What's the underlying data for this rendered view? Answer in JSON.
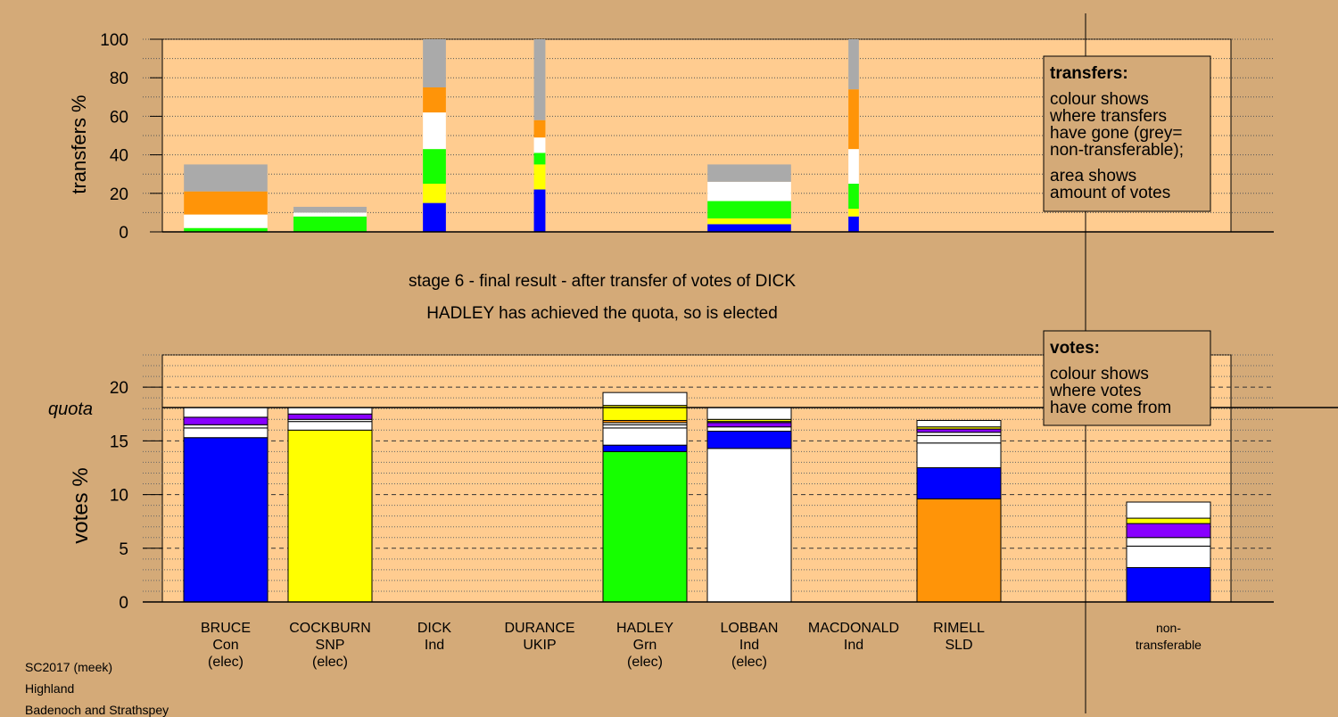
{
  "colors": {
    "background": "#d4aa78",
    "plot_background": "#ffcc90",
    "Con": "#0000ff",
    "SNP": "#ffff00",
    "Grn": "#16ff00",
    "Ind": "#ffffff",
    "SLD": "#ff9408",
    "Other": "#8800ff",
    "nontransferable": "#aaaaaa"
  },
  "heading": {
    "stage": "stage 6 - final result - after transfer of votes of DICK",
    "status": "HADLEY has achieved the quota, so is elected"
  },
  "legends": {
    "transfers": {
      "title": "transfers:",
      "lines": [
        "colour shows",
        "where transfers",
        "have gone (grey=",
        "non-transferable);",
        "area shows",
        "amount of votes"
      ]
    },
    "votes": {
      "title": "votes:",
      "lines": [
        "colour shows",
        "where votes",
        "have come from"
      ]
    }
  },
  "footer": {
    "line1": "SC2017 (meek)",
    "line2": "Highland",
    "line3": "Badenoch and Strathspey"
  },
  "chart_data": [
    {
      "type": "bar",
      "stacked": true,
      "title": "",
      "ylabel": "transfers %",
      "ylim": [
        0,
        100
      ],
      "yticks": [
        0,
        20,
        40,
        60,
        80,
        100
      ],
      "grid": true,
      "legend": "right",
      "bars": [
        {
          "slot": 0,
          "width": 0.8,
          "segments": [
            {
              "color": "Grn",
              "value": 2
            },
            {
              "color": "Ind",
              "value": 7
            },
            {
              "color": "SLD",
              "value": 12
            },
            {
              "color": "nontransferable",
              "value": 14
            }
          ]
        },
        {
          "slot": 1,
          "width": 0.7,
          "segments": [
            {
              "color": "Grn",
              "value": 8
            },
            {
              "color": "Ind",
              "value": 2
            },
            {
              "color": "nontransferable",
              "value": 3
            }
          ]
        },
        {
          "slot": 2,
          "width": 0.22,
          "segments": [
            {
              "color": "Con",
              "value": 15
            },
            {
              "color": "SNP",
              "value": 10
            },
            {
              "color": "Grn",
              "value": 18
            },
            {
              "color": "Ind",
              "value": 19
            },
            {
              "color": "SLD",
              "value": 13
            },
            {
              "color": "nontransferable",
              "value": 25
            }
          ]
        },
        {
          "slot": 3,
          "width": 0.11,
          "segments": [
            {
              "color": "Con",
              "value": 22
            },
            {
              "color": "SNP",
              "value": 13
            },
            {
              "color": "Grn",
              "value": 6
            },
            {
              "color": "Ind",
              "value": 8
            },
            {
              "color": "SLD",
              "value": 9
            },
            {
              "color": "nontransferable",
              "value": 42
            }
          ]
        },
        {
          "slot": 5,
          "width": 0.8,
          "segments": [
            {
              "color": "Con",
              "value": 4
            },
            {
              "color": "SNP",
              "value": 3
            },
            {
              "color": "Grn",
              "value": 9
            },
            {
              "color": "Ind",
              "value": 10
            },
            {
              "color": "nontransferable",
              "value": 9
            }
          ]
        },
        {
          "slot": 6,
          "width": 0.1,
          "segments": [
            {
              "color": "Con",
              "value": 8
            },
            {
              "color": "SNP",
              "value": 4
            },
            {
              "color": "Grn",
              "value": 13
            },
            {
              "color": "Ind",
              "value": 18
            },
            {
              "color": "SLD",
              "value": 31
            },
            {
              "color": "nontransferable",
              "value": 26
            }
          ]
        }
      ]
    },
    {
      "type": "bar",
      "stacked": true,
      "title": "",
      "ylabel": "votes %",
      "ylim": [
        0,
        23
      ],
      "yticks": [
        0,
        5,
        10,
        15,
        20
      ],
      "quota": 18.1,
      "quota_label": "quota",
      "grid": true,
      "legend": "right",
      "candidates": [
        {
          "name": "BRUCE",
          "party": "Con",
          "note": "(elec)"
        },
        {
          "name": "COCKBURN",
          "party": "SNP",
          "note": "(elec)"
        },
        {
          "name": "DICK",
          "party": "Ind",
          "note": ""
        },
        {
          "name": "DURANCE",
          "party": "UKIP",
          "note": ""
        },
        {
          "name": "HADLEY",
          "party": "Grn",
          "note": "(elec)"
        },
        {
          "name": "LOBBAN",
          "party": "Ind",
          "note": "(elec)"
        },
        {
          "name": "MACDONALD",
          "party": "Ind",
          "note": ""
        },
        {
          "name": "RIMELL",
          "party": "SLD",
          "note": ""
        },
        {
          "name": "non-",
          "party": "transferable",
          "note": ""
        }
      ],
      "bars": [
        {
          "slot": 0,
          "segments": [
            {
              "color": "Con",
              "value": 15.3
            },
            {
              "color": "Ind",
              "value": 0.9
            },
            {
              "color": "Ind",
              "value": 0.3
            },
            {
              "color": "Other",
              "value": 0.7
            },
            {
              "color": "Ind",
              "value": 0.9
            }
          ]
        },
        {
          "slot": 1,
          "segments": [
            {
              "color": "SNP",
              "value": 16.0
            },
            {
              "color": "Ind",
              "value": 0.8
            },
            {
              "color": "Ind",
              "value": 0.2
            },
            {
              "color": "Other",
              "value": 0.5
            },
            {
              "color": "Ind",
              "value": 0.6
            }
          ]
        },
        {
          "slot": 4,
          "segments": [
            {
              "color": "Grn",
              "value": 14.0
            },
            {
              "color": "Con",
              "value": 0.6
            },
            {
              "color": "Ind",
              "value": 1.6
            },
            {
              "color": "Ind",
              "value": 0.3
            },
            {
              "color": "Ind",
              "value": 0.2
            },
            {
              "color": "SLD",
              "value": 0.2
            },
            {
              "color": "SNP",
              "value": 1.4
            },
            {
              "color": "Ind",
              "value": 1.2
            }
          ]
        },
        {
          "slot": 5,
          "segments": [
            {
              "color": "Ind",
              "value": 14.3
            },
            {
              "color": "Con",
              "value": 1.6
            },
            {
              "color": "Ind",
              "value": 0.4
            },
            {
              "color": "Other",
              "value": 0.4
            },
            {
              "color": "Ind",
              "value": 0.1
            },
            {
              "color": "SNP",
              "value": 0.2
            },
            {
              "color": "Ind",
              "value": 1.1
            }
          ]
        },
        {
          "slot": 7,
          "segments": [
            {
              "color": "SLD",
              "value": 9.6
            },
            {
              "color": "Con",
              "value": 2.9
            },
            {
              "color": "Ind",
              "value": 2.3
            },
            {
              "color": "Ind",
              "value": 0.7
            },
            {
              "color": "Ind",
              "value": 0.3
            },
            {
              "color": "Other",
              "value": 0.3
            },
            {
              "color": "SNP",
              "value": 0.2
            },
            {
              "color": "Ind",
              "value": 0.6
            }
          ]
        },
        {
          "slot": 8,
          "segments": [
            {
              "color": "Con",
              "value": 3.2
            },
            {
              "color": "Ind",
              "value": 2.0
            },
            {
              "color": "Ind",
              "value": 0.8
            },
            {
              "color": "Other",
              "value": 1.3
            },
            {
              "color": "SNP",
              "value": 0.5
            },
            {
              "color": "Ind",
              "value": 1.5
            }
          ]
        }
      ]
    }
  ]
}
